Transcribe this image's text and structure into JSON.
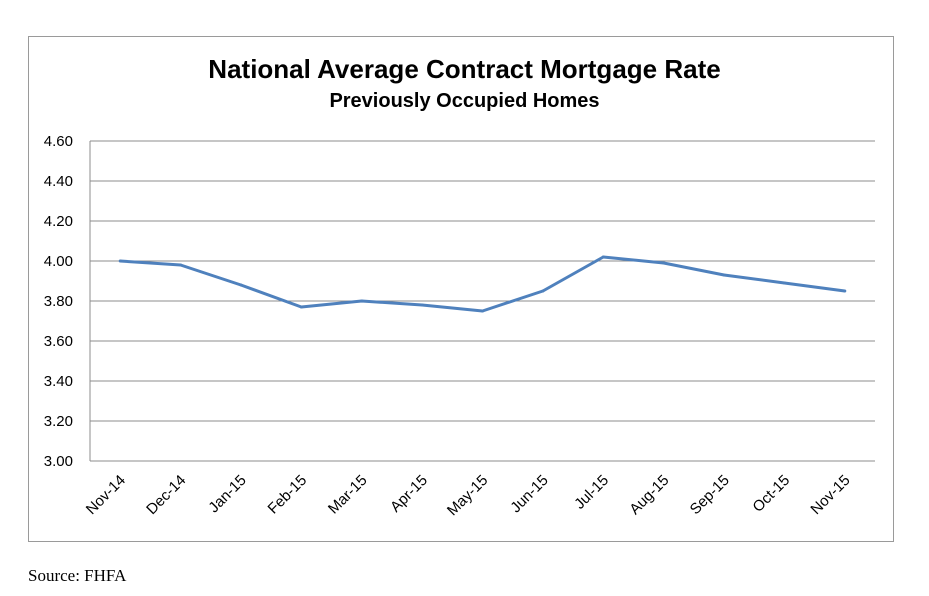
{
  "chart_data": {
    "type": "line",
    "title": "National Average Contract Mortgage Rate",
    "subtitle": "Previously Occupied Homes",
    "categories": [
      "Nov-14",
      "Dec-14",
      "Jan-15",
      "Feb-15",
      "Mar-15",
      "Apr-15",
      "May-15",
      "Jun-15",
      "Jul-15",
      "Aug-15",
      "Sep-15",
      "Oct-15",
      "Nov-15"
    ],
    "series": [
      {
        "values": [
          4.0,
          3.98,
          3.88,
          3.77,
          3.8,
          3.78,
          3.75,
          3.85,
          4.02,
          3.99,
          3.93,
          3.89,
          3.85
        ]
      }
    ],
    "ylim": [
      3.0,
      4.6
    ],
    "yticks": [
      "3.00",
      "3.20",
      "3.40",
      "3.60",
      "3.80",
      "4.00",
      "4.20",
      "4.40",
      "4.60"
    ],
    "grid": true,
    "line_color": "#4f81bd",
    "xlabel": "",
    "ylabel": ""
  },
  "source": "Source:  FHFA"
}
